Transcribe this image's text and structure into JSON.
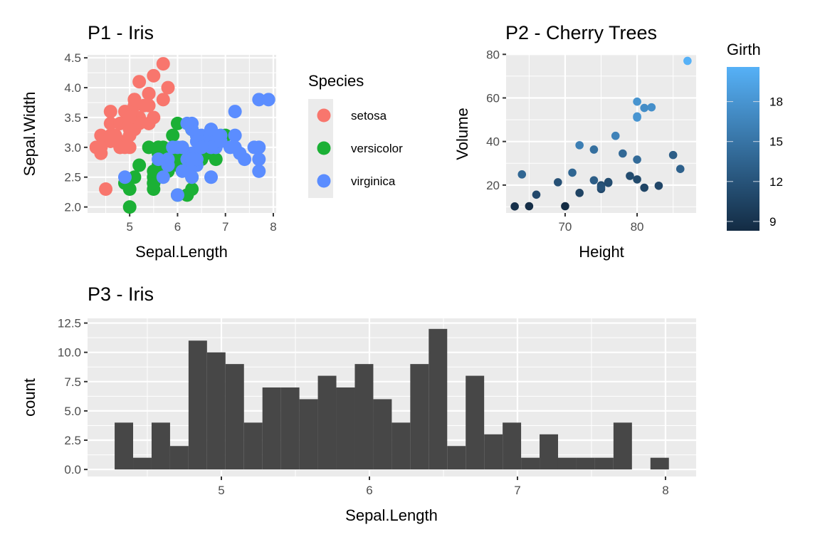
{
  "chart_data": [
    {
      "id": "p1",
      "type": "scatter",
      "title": "P1 - Iris",
      "xlabel": "Sepal.Length",
      "ylabel": "Sepal.Width",
      "xlim": [
        4.12,
        8.06
      ],
      "ylim": [
        1.9,
        4.55
      ],
      "xticks": [
        5,
        6,
        7,
        8
      ],
      "xtick_labels": [
        "5",
        "6",
        "7",
        "8"
      ],
      "yticks": [
        2.0,
        2.5,
        3.0,
        3.5,
        4.0,
        4.5
      ],
      "ytick_labels": [
        "2.0",
        "2.5",
        "3.0",
        "3.5",
        "4.0",
        "4.5"
      ],
      "grid": true,
      "legend": {
        "title": "Species",
        "position": "right"
      },
      "series": [
        {
          "name": "setosa",
          "color": "#F8766D",
          "x": [
            5.1,
            4.9,
            4.7,
            4.6,
            5.0,
            5.4,
            4.6,
            5.0,
            4.4,
            4.9,
            5.4,
            4.8,
            4.8,
            4.3,
            5.8,
            5.7,
            5.4,
            5.1,
            5.7,
            5.1,
            5.4,
            5.1,
            4.6,
            5.1,
            4.8,
            5.0,
            5.0,
            5.2,
            5.2,
            4.7,
            4.8,
            5.4,
            5.2,
            5.5,
            4.9,
            5.0,
            5.5,
            4.9,
            4.4,
            5.1,
            5.0,
            4.5,
            4.4,
            5.0,
            5.1,
            4.8,
            5.1,
            4.6,
            5.3,
            5.0
          ],
          "y": [
            3.5,
            3.0,
            3.2,
            3.1,
            3.6,
            3.9,
            3.4,
            3.4,
            2.9,
            3.1,
            3.7,
            3.4,
            3.0,
            3.0,
            4.0,
            4.4,
            3.9,
            3.5,
            3.8,
            3.8,
            3.4,
            3.7,
            3.6,
            3.3,
            3.4,
            3.0,
            3.4,
            3.5,
            3.4,
            3.2,
            3.1,
            3.4,
            4.1,
            4.2,
            3.1,
            3.2,
            3.5,
            3.6,
            3.0,
            3.4,
            3.5,
            2.3,
            3.2,
            3.5,
            3.8,
            3.0,
            3.8,
            3.2,
            3.7,
            3.3
          ]
        },
        {
          "name": "versicolor",
          "color": "#1BB035",
          "x": [
            7.0,
            6.4,
            6.9,
            5.5,
            6.5,
            5.7,
            6.3,
            4.9,
            6.6,
            5.2,
            5.0,
            5.9,
            6.0,
            6.1,
            5.6,
            6.7,
            5.6,
            5.8,
            6.2,
            5.6,
            5.9,
            6.1,
            6.3,
            6.1,
            6.4,
            6.6,
            6.8,
            6.7,
            6.0,
            5.7,
            5.5,
            5.5,
            5.8,
            6.0,
            5.4,
            6.0,
            6.7,
            6.3,
            5.6,
            5.5,
            5.5,
            6.1,
            5.8,
            5.0,
            5.6,
            5.7,
            5.7,
            6.2,
            5.1,
            5.7
          ],
          "y": [
            3.2,
            3.2,
            3.1,
            2.3,
            2.8,
            2.8,
            3.3,
            2.4,
            2.9,
            2.7,
            2.0,
            3.0,
            2.2,
            2.9,
            2.9,
            3.1,
            3.0,
            2.7,
            2.2,
            2.5,
            3.2,
            2.8,
            2.5,
            2.8,
            2.9,
            3.0,
            2.8,
            3.0,
            2.9,
            2.6,
            2.4,
            2.4,
            2.7,
            2.7,
            3.0,
            3.4,
            3.1,
            2.3,
            3.0,
            2.5,
            2.6,
            3.0,
            2.6,
            2.3,
            2.7,
            3.0,
            2.9,
            2.9,
            2.5,
            2.8
          ]
        },
        {
          "name": "virginica",
          "color": "#5B8DFF",
          "x": [
            6.3,
            5.8,
            7.1,
            6.3,
            6.5,
            7.6,
            4.9,
            7.3,
            6.7,
            7.2,
            6.5,
            6.4,
            6.8,
            5.7,
            5.8,
            6.4,
            6.5,
            7.7,
            7.7,
            6.0,
            6.9,
            5.6,
            7.7,
            6.3,
            6.7,
            7.2,
            6.2,
            6.1,
            6.4,
            7.2,
            7.4,
            7.9,
            6.4,
            6.3,
            6.1,
            7.7,
            6.3,
            6.4,
            6.0,
            6.9,
            6.7,
            6.9,
            5.8,
            6.8,
            6.7,
            6.7,
            6.3,
            6.5,
            6.2,
            5.9
          ],
          "y": [
            3.3,
            2.7,
            3.0,
            2.9,
            3.0,
            3.0,
            2.5,
            2.9,
            2.5,
            3.6,
            3.2,
            2.7,
            3.0,
            2.5,
            2.8,
            3.2,
            3.0,
            3.8,
            2.6,
            2.2,
            3.2,
            2.8,
            2.8,
            2.7,
            3.3,
            3.2,
            2.8,
            3.0,
            2.8,
            3.0,
            2.8,
            3.8,
            2.8,
            2.8,
            2.6,
            3.0,
            3.4,
            3.1,
            3.0,
            3.1,
            3.1,
            3.1,
            2.7,
            3.2,
            3.3,
            3.0,
            2.5,
            3.0,
            3.4,
            3.0
          ]
        }
      ]
    },
    {
      "id": "p2",
      "type": "scatter",
      "title": "P2 - Cherry Trees",
      "xlabel": "Height",
      "ylabel": "Volume",
      "xlim": [
        61.8,
        88.2
      ],
      "ylim": [
        7.2,
        80.1
      ],
      "xticks": [
        70,
        80
      ],
      "xtick_labels": [
        "70",
        "80"
      ],
      "yticks": [
        20,
        40,
        60,
        80
      ],
      "ytick_labels": [
        "20",
        "40",
        "60",
        "80"
      ],
      "grid": true,
      "color_scale": {
        "title": "Girth",
        "low": "#132B43",
        "high": "#56B1F7",
        "range": [
          8.3,
          20.6
        ],
        "ticks": [
          9,
          12,
          15,
          18
        ],
        "tick_labels": [
          "9",
          "12",
          "15",
          "18"
        ],
        "position": "right"
      },
      "points": {
        "x": [
          70,
          65,
          63,
          72,
          81,
          83,
          66,
          75,
          80,
          75,
          79,
          76,
          76,
          69,
          75,
          74,
          85,
          86,
          71,
          64,
          78,
          80,
          74,
          72,
          77,
          81,
          82,
          80,
          80,
          80,
          87
        ],
        "y": [
          10.3,
          10.3,
          10.2,
          16.4,
          18.8,
          19.7,
          15.6,
          18.2,
          22.6,
          19.9,
          24.2,
          21.0,
          21.4,
          21.3,
          19.1,
          22.2,
          33.8,
          27.4,
          25.7,
          24.9,
          34.5,
          31.7,
          36.3,
          38.3,
          42.6,
          55.4,
          55.7,
          58.3,
          51.5,
          51.0,
          77.0
        ],
        "color": [
          8.3,
          8.6,
          8.8,
          10.5,
          10.7,
          10.8,
          11.0,
          11.0,
          11.1,
          11.2,
          11.3,
          11.4,
          11.4,
          11.7,
          12.0,
          12.9,
          12.9,
          13.3,
          13.7,
          13.8,
          14.0,
          14.2,
          14.5,
          16.0,
          16.3,
          17.3,
          17.5,
          17.9,
          18.0,
          18.0,
          20.6
        ]
      }
    },
    {
      "id": "p3",
      "type": "bar",
      "title": "P3 - Iris",
      "xlabel": "Sepal.Length",
      "ylabel": "count",
      "xlim": [
        4.096,
        8.207
      ],
      "ylim": [
        -0.6,
        12.9
      ],
      "xticks": [
        5,
        6,
        7,
        8
      ],
      "xtick_labels": [
        "5",
        "6",
        "7",
        "8"
      ],
      "yticks": [
        0,
        2.5,
        5,
        7.5,
        10,
        12.5
      ],
      "ytick_labels": [
        "0.0",
        "2.5",
        "5.0",
        "7.5",
        "10.0",
        "12.5"
      ],
      "grid": true,
      "bar_color": "#474747",
      "bin_start": 4.279,
      "bin_width": 0.1248,
      "values": [
        4,
        1,
        4,
        2,
        11,
        10,
        9,
        4,
        7,
        7,
        6,
        8,
        7,
        9,
        6,
        4,
        9,
        12,
        2,
        8,
        3,
        4,
        1,
        3,
        1,
        1,
        1,
        4,
        0,
        1
      ]
    }
  ]
}
